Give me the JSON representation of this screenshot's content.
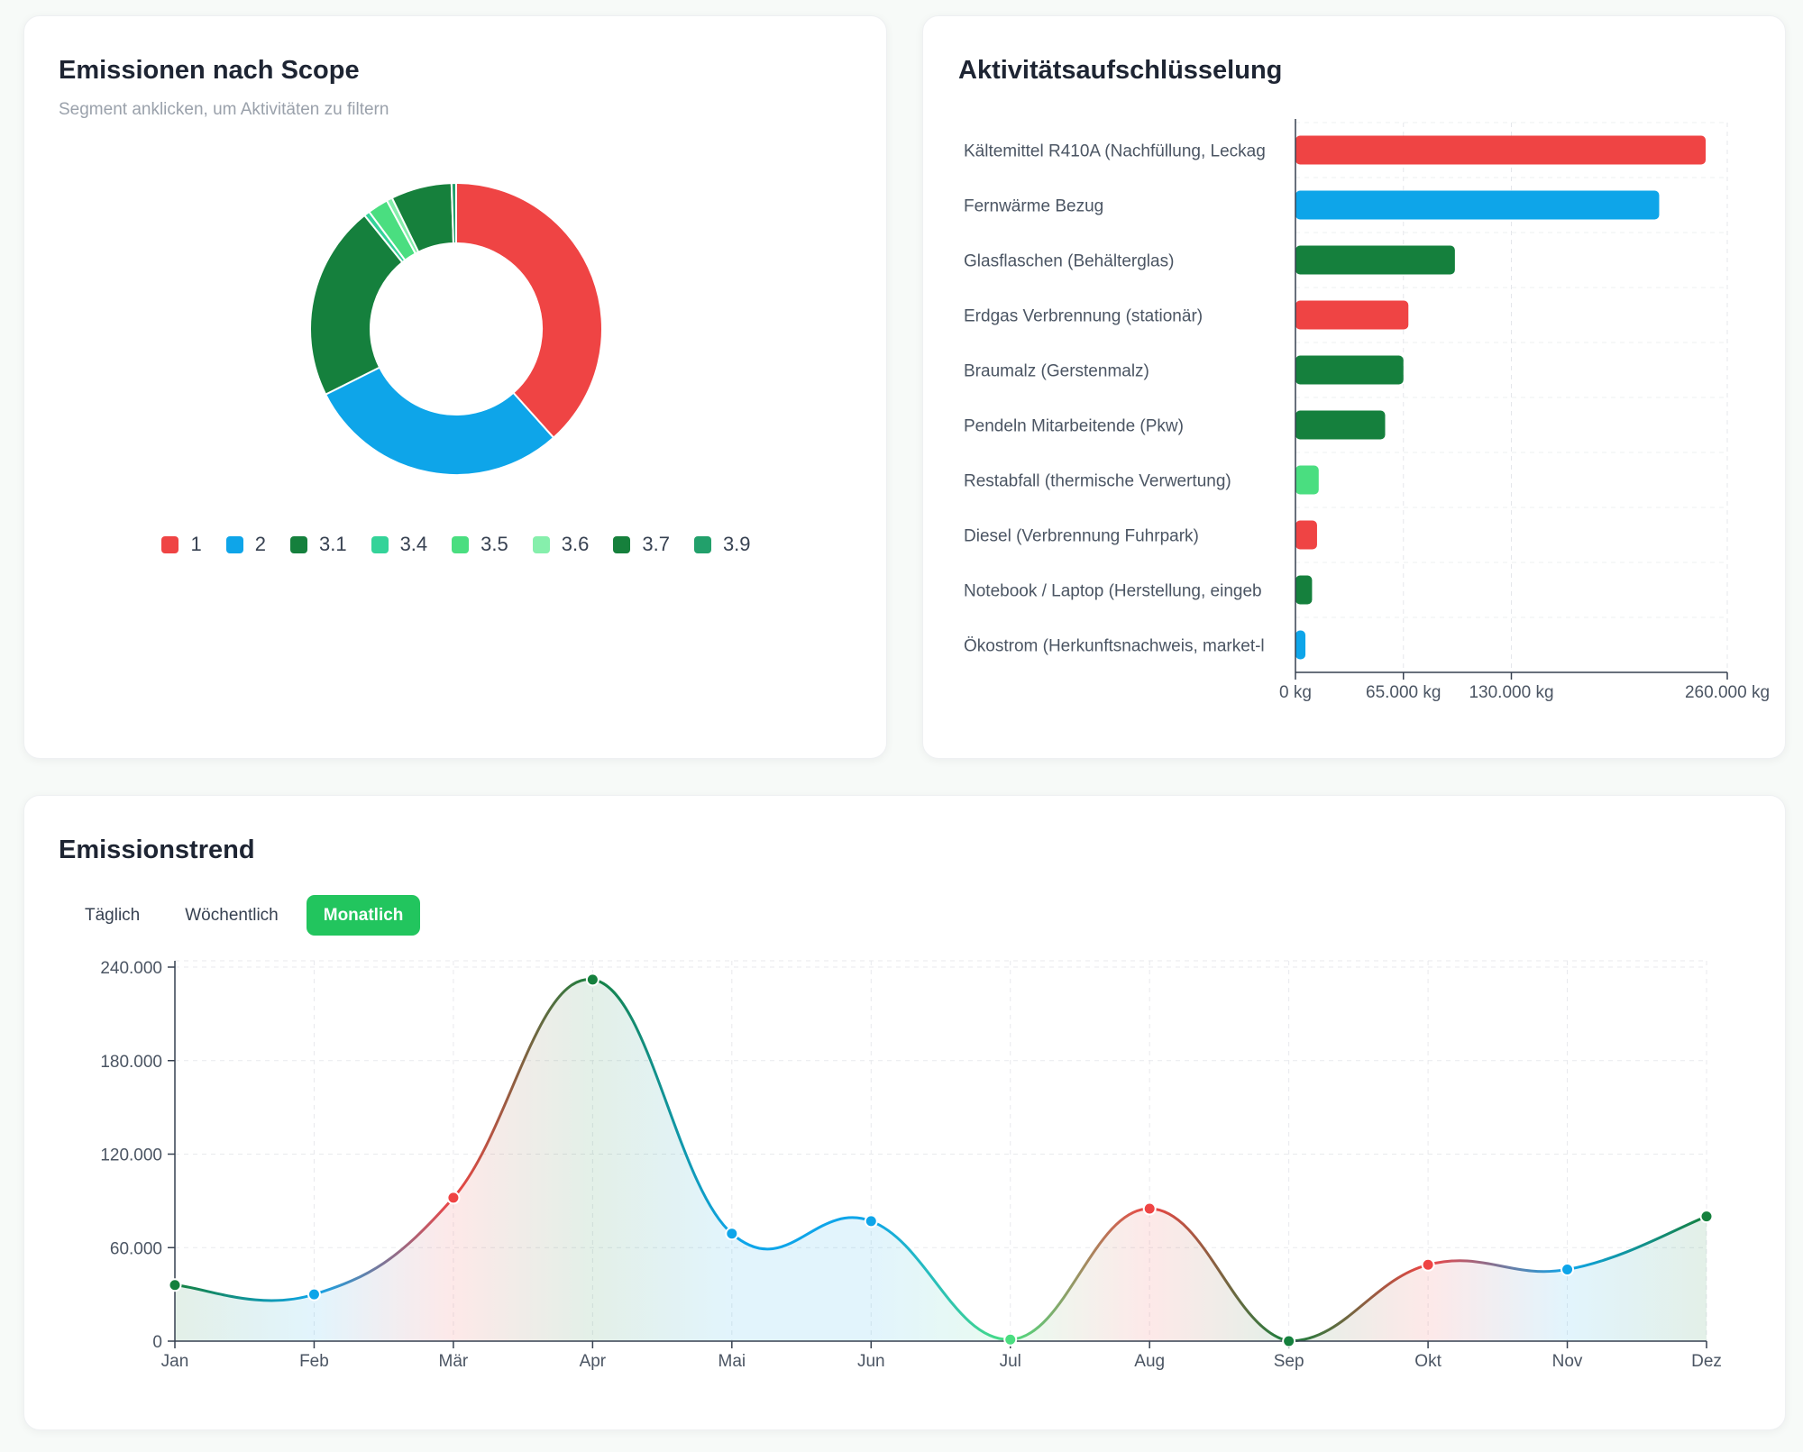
{
  "scope_card": {
    "title": "Emissionen nach Scope",
    "subtitle": "Segment anklicken, um Aktivitäten zu filtern"
  },
  "activity_card": {
    "title": "Aktivitätsaufschlüsselung"
  },
  "trend_card": {
    "title": "Emissionstrend",
    "tabs": [
      {
        "label": "Täglich",
        "active": false
      },
      {
        "label": "Wöchentlich",
        "active": false
      },
      {
        "label": "Monatlich",
        "active": true
      }
    ]
  },
  "chart_data": [
    {
      "type": "pie",
      "variant": "donut",
      "categories": [
        "1",
        "2",
        "3.1",
        "3.4",
        "3.5",
        "3.6",
        "3.7",
        "3.9"
      ],
      "values": [
        302000,
        230000,
        170000,
        5000,
        18000,
        5000,
        53000,
        4000
      ],
      "colors": [
        "#ef4444",
        "#0ea5e9",
        "#15803d",
        "#34d399",
        "#4ade80",
        "#86efac",
        "#16803c",
        "#22a06b"
      ],
      "legend_position": "bottom"
    },
    {
      "type": "bar",
      "orientation": "horizontal",
      "categories": [
        "Kältemittel R410A (Nachfüllung, Leckag",
        "Fernwärme Bezug",
        "Glasflaschen (Behälterglas)",
        "Erdgas Verbrennung (stationär)",
        "Braumalz (Gerstenmalz)",
        "Pendeln Mitarbeitende (Pkw)",
        "Restabfall (thermische Verwertung)",
        "Diesel (Verbrennung Fuhrpark)",
        "Notebook / Laptop (Herstellung, eingeb",
        "Ökostrom (Herkunftsnachweis, market-l"
      ],
      "values": [
        247000,
        219000,
        96000,
        68000,
        65000,
        54000,
        14000,
        13000,
        10000,
        6000
      ],
      "colors": [
        "#ef4444",
        "#0ea5e9",
        "#15803d",
        "#ef4444",
        "#15803d",
        "#15803d",
        "#4ade80",
        "#ef4444",
        "#15803d",
        "#0ea5e9"
      ],
      "xticks": [
        {
          "value": 0,
          "label": "0 kg"
        },
        {
          "value": 65000,
          "label": "65.000 kg"
        },
        {
          "value": 130000,
          "label": "130.000 kg"
        },
        {
          "value": 260000,
          "label": "260.000 kg"
        }
      ],
      "xlim": [
        0,
        260000
      ],
      "grid": true
    },
    {
      "type": "area",
      "categories": [
        "Jan",
        "Feb",
        "Mär",
        "Apr",
        "Mai",
        "Jun",
        "Jul",
        "Aug",
        "Sep",
        "Okt",
        "Nov",
        "Dez"
      ],
      "values": [
        36000,
        30000,
        92000,
        232000,
        69000,
        77000,
        1000,
        85000,
        0,
        49000,
        46000,
        80000
      ],
      "point_colors": [
        "#15803d",
        "#0ea5e9",
        "#ef4444",
        "#15803d",
        "#0ea5e9",
        "#0ea5e9",
        "#4ade80",
        "#ef4444",
        "#15803d",
        "#ef4444",
        "#0ea5e9",
        "#15803d"
      ],
      "yticks": [
        {
          "value": 0,
          "label": "0"
        },
        {
          "value": 60000,
          "label": "60.000"
        },
        {
          "value": 120000,
          "label": "120.000"
        },
        {
          "value": 180000,
          "label": "180.000"
        },
        {
          "value": 240000,
          "label": "240.000"
        }
      ],
      "ylim": [
        0,
        240000
      ],
      "grid": true
    }
  ]
}
